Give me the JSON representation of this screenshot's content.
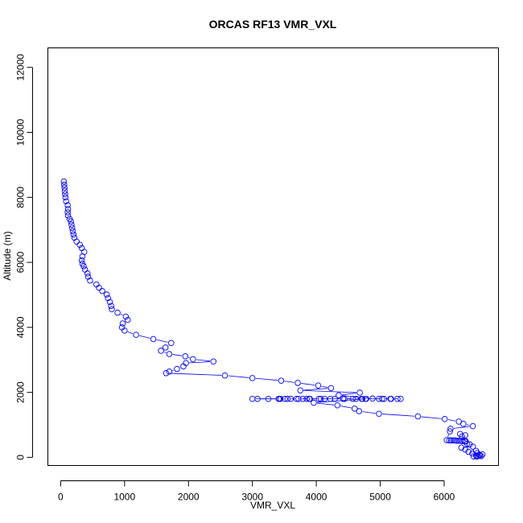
{
  "chart_data": {
    "type": "line",
    "title": "ORCAS RF13 VMR_VXL",
    "xlabel": "VMR_VXL",
    "ylabel": "Altitude (m)",
    "xlim": [
      -200,
      6850
    ],
    "ylim": [
      -250,
      12600
    ],
    "xticks": [
      0,
      1000,
      2000,
      3000,
      4000,
      5000,
      6000
    ],
    "yticks": [
      0,
      2000,
      4000,
      6000,
      8000,
      10000,
      12000
    ],
    "xtick_labels": [
      "0",
      "1000",
      "2000",
      "3000",
      "4000",
      "5000",
      "6000"
    ],
    "ytick_labels": [
      "0",
      "2000",
      "4000",
      "6000",
      "8000",
      "10000",
      "12000"
    ],
    "grid": false,
    "legend": "none",
    "series": [
      {
        "color": "#0000ff",
        "marker": "open-circle",
        "line": true,
        "points": [
          [
            50,
            8490
          ],
          [
            55,
            8390
          ],
          [
            60,
            8300
          ],
          [
            65,
            8200
          ],
          [
            70,
            8100
          ],
          [
            75,
            8000
          ],
          [
            85,
            7880
          ],
          [
            110,
            7760
          ],
          [
            115,
            7640
          ],
          [
            110,
            7540
          ],
          [
            115,
            7440
          ],
          [
            140,
            7340
          ],
          [
            160,
            7260
          ],
          [
            170,
            7160
          ],
          [
            180,
            7060
          ],
          [
            190,
            6960
          ],
          [
            200,
            6860
          ],
          [
            215,
            6760
          ],
          [
            250,
            6640
          ],
          [
            300,
            6540
          ],
          [
            330,
            6440
          ],
          [
            370,
            6320
          ],
          [
            340,
            6180
          ],
          [
            330,
            6060
          ],
          [
            340,
            5960
          ],
          [
            360,
            5880
          ],
          [
            380,
            5780
          ],
          [
            420,
            5660
          ],
          [
            430,
            5560
          ],
          [
            460,
            5440
          ],
          [
            560,
            5320
          ],
          [
            600,
            5220
          ],
          [
            650,
            5120
          ],
          [
            720,
            5010
          ],
          [
            740,
            4900
          ],
          [
            770,
            4780
          ],
          [
            790,
            4660
          ],
          [
            800,
            4560
          ],
          [
            890,
            4450
          ],
          [
            1020,
            4330
          ],
          [
            1050,
            4230
          ],
          [
            970,
            4120
          ],
          [
            960,
            4000
          ],
          [
            1000,
            3900
          ],
          [
            1180,
            3770
          ],
          [
            1450,
            3640
          ],
          [
            1730,
            3520
          ],
          [
            1640,
            3380
          ],
          [
            1570,
            3280
          ],
          [
            1700,
            3180
          ],
          [
            1950,
            3110
          ],
          [
            2070,
            3020
          ],
          [
            2390,
            2950
          ],
          [
            1960,
            2900
          ],
          [
            1920,
            2800
          ],
          [
            1820,
            2720
          ],
          [
            1700,
            2640
          ],
          [
            1650,
            2590
          ],
          [
            2570,
            2520
          ],
          [
            3000,
            2440
          ],
          [
            3450,
            2360
          ],
          [
            3710,
            2290
          ],
          [
            4030,
            2210
          ],
          [
            4230,
            2130
          ],
          [
            3750,
            2060
          ],
          [
            4680,
            1990
          ],
          [
            4350,
            1910
          ],
          [
            4880,
            1810
          ],
          [
            4980,
            1800
          ],
          [
            5030,
            1800
          ],
          [
            5170,
            1800
          ],
          [
            5320,
            1800
          ],
          [
            5270,
            1800
          ],
          [
            5160,
            1800
          ],
          [
            5060,
            1800
          ],
          [
            4780,
            1800
          ],
          [
            4710,
            1800
          ],
          [
            4570,
            1800
          ],
          [
            4420,
            1800
          ],
          [
            4290,
            1800
          ],
          [
            4130,
            1800
          ],
          [
            4070,
            1800
          ],
          [
            3890,
            1800
          ],
          [
            3850,
            1800
          ],
          [
            3790,
            1800
          ],
          [
            3690,
            1800
          ],
          [
            3550,
            1800
          ],
          [
            3440,
            1800
          ],
          [
            3410,
            1800
          ],
          [
            3080,
            1800
          ],
          [
            3000,
            1800
          ],
          [
            3250,
            1800
          ],
          [
            3420,
            1800
          ],
          [
            3510,
            1800
          ],
          [
            3600,
            1800
          ],
          [
            3720,
            1800
          ],
          [
            3900,
            1800
          ],
          [
            4040,
            1800
          ],
          [
            4220,
            1800
          ],
          [
            4440,
            1800
          ],
          [
            4620,
            1800
          ],
          [
            4720,
            1800
          ],
          [
            4770,
            1800
          ],
          [
            3960,
            1680
          ],
          [
            4330,
            1600
          ],
          [
            4600,
            1500
          ],
          [
            4670,
            1420
          ],
          [
            4980,
            1340
          ],
          [
            5590,
            1260
          ],
          [
            6010,
            1180
          ],
          [
            6230,
            1100
          ],
          [
            6300,
            1030
          ],
          [
            6450,
            960
          ],
          [
            6100,
            880
          ],
          [
            6090,
            800
          ],
          [
            6040,
            530
          ],
          [
            6080,
            520
          ],
          [
            6110,
            520
          ],
          [
            6140,
            520
          ],
          [
            6170,
            520
          ],
          [
            6200,
            510
          ],
          [
            6230,
            510
          ],
          [
            6260,
            510
          ],
          [
            6290,
            500
          ],
          [
            6320,
            500
          ],
          [
            6340,
            490
          ],
          [
            6360,
            420
          ],
          [
            6250,
            720
          ],
          [
            6280,
            640
          ],
          [
            6330,
            680
          ],
          [
            6400,
            400
          ],
          [
            6450,
            330
          ],
          [
            6270,
            300
          ],
          [
            6330,
            240
          ],
          [
            6380,
            170
          ],
          [
            6440,
            120
          ],
          [
            6500,
            200
          ],
          [
            6520,
            130
          ],
          [
            6560,
            60
          ],
          [
            6600,
            90
          ],
          [
            6500,
            60
          ],
          [
            6460,
            30
          ],
          [
            6510,
            20
          ],
          [
            6530,
            40
          ],
          [
            6550,
            80
          ],
          [
            6580,
            40
          ]
        ]
      }
    ]
  }
}
